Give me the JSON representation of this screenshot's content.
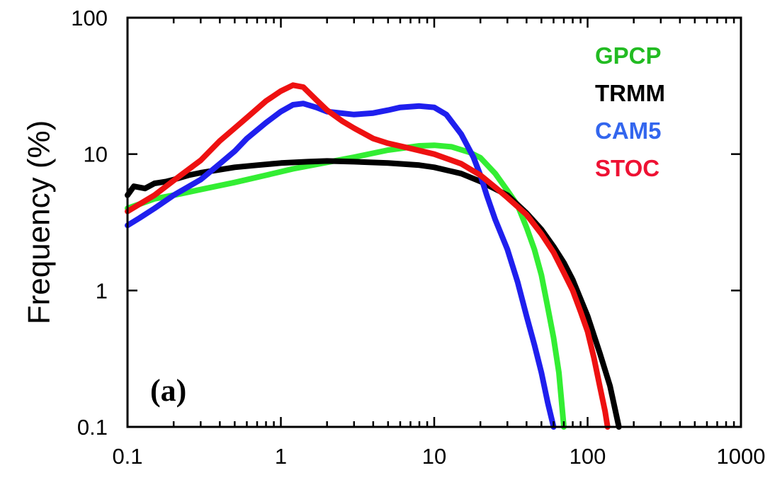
{
  "chart_data": {
    "type": "line",
    "title": "",
    "xlabel": "",
    "ylabel": "Frequency (%)",
    "panel_label": "(a)",
    "xscale": "log",
    "yscale": "log",
    "xlim": [
      0.1,
      1000
    ],
    "ylim": [
      0.1,
      100
    ],
    "x_tick_labels": [
      "0.1",
      "1",
      "10",
      "100",
      "1000"
    ],
    "y_tick_labels": [
      "0.1",
      "1",
      "10",
      "100"
    ],
    "grid": false,
    "legend_position": "top-right",
    "series": [
      {
        "name": "GPCP",
        "color": "#22bb22",
        "line_color": "#33ee33",
        "points": [
          [
            0.1,
            4.0
          ],
          [
            0.15,
            4.7
          ],
          [
            0.2,
            5.0
          ],
          [
            0.3,
            5.5
          ],
          [
            0.5,
            6.2
          ],
          [
            0.8,
            7.0
          ],
          [
            1.2,
            7.8
          ],
          [
            2,
            8.7
          ],
          [
            3,
            9.5
          ],
          [
            5,
            10.7
          ],
          [
            8,
            11.5
          ],
          [
            10,
            11.6
          ],
          [
            13,
            11.3
          ],
          [
            17,
            10.3
          ],
          [
            20,
            9.4
          ],
          [
            25,
            7.2
          ],
          [
            30,
            5.4
          ],
          [
            35,
            4.2
          ],
          [
            40,
            2.9
          ],
          [
            45,
            2.0
          ],
          [
            50,
            1.3
          ],
          [
            55,
            0.75
          ],
          [
            60,
            0.45
          ],
          [
            65,
            0.25
          ],
          [
            70,
            0.1
          ]
        ]
      },
      {
        "name": "TRMM",
        "color": "#000000",
        "line_color": "#000000",
        "points": [
          [
            0.1,
            5.0
          ],
          [
            0.11,
            5.8
          ],
          [
            0.13,
            5.6
          ],
          [
            0.15,
            6.1
          ],
          [
            0.18,
            6.3
          ],
          [
            0.2,
            6.5
          ],
          [
            0.25,
            7.0
          ],
          [
            0.3,
            7.3
          ],
          [
            0.5,
            8.0
          ],
          [
            0.7,
            8.3
          ],
          [
            1,
            8.6
          ],
          [
            1.5,
            8.8
          ],
          [
            2,
            8.9
          ],
          [
            3,
            8.8
          ],
          [
            5,
            8.6
          ],
          [
            8,
            8.3
          ],
          [
            10,
            8.0
          ],
          [
            15,
            7.2
          ],
          [
            20,
            6.3
          ],
          [
            30,
            5.0
          ],
          [
            40,
            3.7
          ],
          [
            50,
            2.8
          ],
          [
            60,
            2.1
          ],
          [
            70,
            1.6
          ],
          [
            80,
            1.2
          ],
          [
            100,
            0.65
          ],
          [
            120,
            0.35
          ],
          [
            140,
            0.2
          ],
          [
            160,
            0.1
          ]
        ]
      },
      {
        "name": "CAM5",
        "color": "#3366ee",
        "line_color": "#1f1fee",
        "points": [
          [
            0.1,
            3.0
          ],
          [
            0.12,
            3.4
          ],
          [
            0.15,
            4.0
          ],
          [
            0.2,
            5.0
          ],
          [
            0.3,
            6.5
          ],
          [
            0.4,
            8.5
          ],
          [
            0.5,
            10.5
          ],
          [
            0.6,
            13.0
          ],
          [
            0.8,
            17.0
          ],
          [
            1,
            20.5
          ],
          [
            1.2,
            23.0
          ],
          [
            1.4,
            23.5
          ],
          [
            1.7,
            22.0
          ],
          [
            2,
            20.5
          ],
          [
            3,
            19.5
          ],
          [
            4,
            20.0
          ],
          [
            5,
            21.0
          ],
          [
            6,
            22.0
          ],
          [
            8,
            22.5
          ],
          [
            10,
            22.0
          ],
          [
            12,
            19.5
          ],
          [
            15,
            14.0
          ],
          [
            18,
            9.5
          ],
          [
            20,
            7.0
          ],
          [
            22,
            5.0
          ],
          [
            25,
            3.3
          ],
          [
            30,
            2.0
          ],
          [
            35,
            1.15
          ],
          [
            40,
            0.65
          ],
          [
            45,
            0.4
          ],
          [
            50,
            0.25
          ],
          [
            55,
            0.15
          ],
          [
            60,
            0.1
          ]
        ]
      },
      {
        "name": "STOC",
        "color": "#ee1133",
        "line_color": "#ee1111",
        "points": [
          [
            0.1,
            3.8
          ],
          [
            0.15,
            5.0
          ],
          [
            0.2,
            6.4
          ],
          [
            0.3,
            9.0
          ],
          [
            0.4,
            12.5
          ],
          [
            0.5,
            15.5
          ],
          [
            0.6,
            18.5
          ],
          [
            0.8,
            24.5
          ],
          [
            1,
            29.0
          ],
          [
            1.2,
            32.0
          ],
          [
            1.4,
            31.0
          ],
          [
            1.7,
            25.0
          ],
          [
            2,
            21.0
          ],
          [
            2.5,
            17.5
          ],
          [
            3,
            15.5
          ],
          [
            4,
            13.0
          ],
          [
            5,
            12.0
          ],
          [
            7,
            11.0
          ],
          [
            10,
            10.0
          ],
          [
            15,
            8.5
          ],
          [
            20,
            7.0
          ],
          [
            25,
            5.7
          ],
          [
            30,
            4.8
          ],
          [
            40,
            3.6
          ],
          [
            50,
            2.6
          ],
          [
            60,
            1.9
          ],
          [
            70,
            1.35
          ],
          [
            80,
            1.0
          ],
          [
            90,
            0.7
          ],
          [
            100,
            0.5
          ],
          [
            110,
            0.32
          ],
          [
            120,
            0.2
          ],
          [
            130,
            0.13
          ],
          [
            135,
            0.1
          ]
        ]
      }
    ]
  }
}
